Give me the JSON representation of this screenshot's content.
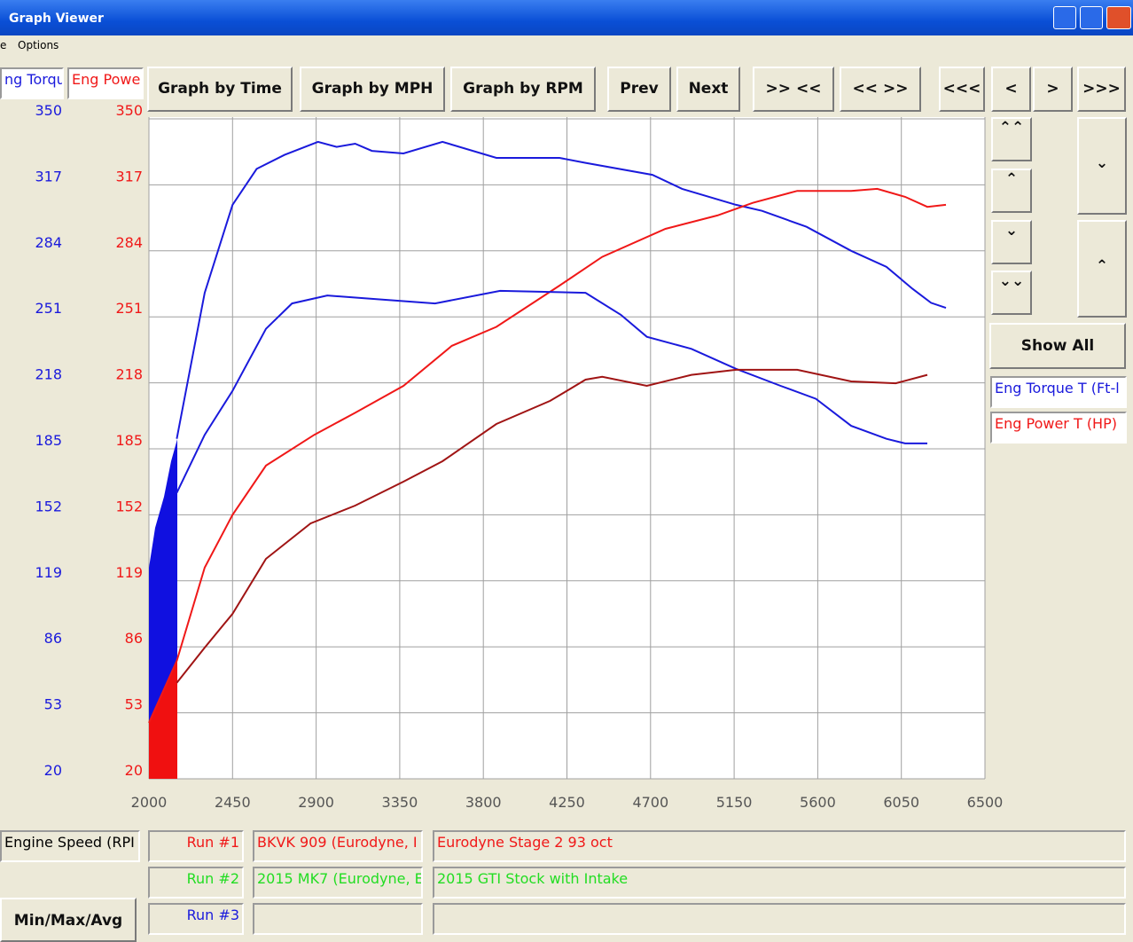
{
  "window": {
    "title": "Graph Viewer",
    "menu": [
      "e",
      "Options"
    ]
  },
  "tabs": [
    "ng Torqu",
    "Eng Powe"
  ],
  "toolbar": [
    "Graph by Time",
    "Graph by MPH",
    "Graph by RPM",
    "Prev",
    "Next",
    ">> <<",
    "<< >>",
    "<<<",
    "<",
    ">",
    ">>>"
  ],
  "show_all": "Show All",
  "legend": [
    "Eng Torque T (Ft-l",
    "Eng Power T (HP)"
  ],
  "x_axis_box": "Engine Speed (RPI",
  "min_max_button": "Min/Max/Avg",
  "runs": [
    {
      "label": "Run #1",
      "name": "BKVK 909 (Eurodyne, I",
      "note": "Eurodyne Stage 2 93 oct"
    },
    {
      "label": "Run #2",
      "name": "2015 MK7 (Eurodyne, E",
      "note": "2015 GTI Stock with Intake"
    },
    {
      "label": "Run #3"
    }
  ],
  "chart_data": {
    "type": "line",
    "xlim": [
      2000,
      6500
    ],
    "xticks": [
      2000,
      2450,
      2900,
      3350,
      3800,
      4250,
      4700,
      5150,
      5600,
      6050,
      6500
    ],
    "ylim": [
      20,
      350
    ],
    "yticks": [
      20,
      53,
      86,
      119,
      152,
      185,
      218,
      251,
      284,
      317,
      350
    ],
    "y2lim": [
      20,
      350
    ],
    "y2ticks": [
      20,
      53,
      86,
      119,
      152,
      185,
      218,
      251,
      284,
      317,
      350
    ],
    "grid": true,
    "series": [
      {
        "color": "#1a1adc",
        "x": [
          2150,
          2300,
          2450,
          2580,
          2730,
          2910,
          3010,
          3110,
          3200,
          3370,
          3580,
          3870,
          4210,
          4350,
          4710,
          4870,
          5160,
          5300,
          5540,
          5780,
          5970,
          6110,
          6210,
          6290
        ],
        "values": [
          190,
          263,
          307,
          325,
          332,
          338.5,
          336,
          337.6,
          334,
          332.7,
          338.5,
          330.5,
          330.5,
          328,
          322,
          315,
          307,
          304,
          296,
          284,
          276,
          265,
          258,
          255.5
        ]
      },
      {
        "color": "#f01818",
        "axis": "y2",
        "x": [
          2000,
          2150,
          2300,
          2450,
          2630,
          2890,
          3110,
          3370,
          3630,
          3870,
          4210,
          4440,
          4780,
          5060,
          5250,
          5490,
          5780,
          5920,
          6070,
          6190,
          6290
        ],
        "values": [
          48,
          79,
          125.6,
          152,
          176.6,
          192,
          203,
          216.5,
          236.5,
          246,
          266.6,
          281,
          295,
          301.7,
          308,
          314,
          314,
          315,
          311,
          306,
          307
        ]
      },
      {
        "color": "#1a1adc",
        "x": [
          2150,
          2300,
          2450,
          2630,
          2770,
          2960,
          3200,
          3540,
          3890,
          4350,
          4540,
          4680,
          4920,
          5160,
          5400,
          5590,
          5780,
          5970,
          6070,
          6190
        ],
        "values": [
          163,
          192,
          214,
          245,
          257.7,
          261.7,
          260,
          257.7,
          264,
          263,
          252,
          241,
          235,
          225,
          216.5,
          210,
          196.5,
          190,
          187.7,
          187.7
        ]
      },
      {
        "color": "#a01414",
        "axis": "y2",
        "x": [
          2150,
          2300,
          2450,
          2630,
          2870,
          3110,
          3370,
          3580,
          3870,
          4160,
          4350,
          4440,
          4680,
          4920,
          5160,
          5490,
          5780,
          6020,
          6190
        ],
        "values": [
          68,
          85.6,
          102.5,
          130,
          147.7,
          156.6,
          168.6,
          178.8,
          197.4,
          209,
          219.6,
          221,
          216.5,
          222,
          224.5,
          224.5,
          218.7,
          217.8,
          222
        ]
      }
    ]
  }
}
